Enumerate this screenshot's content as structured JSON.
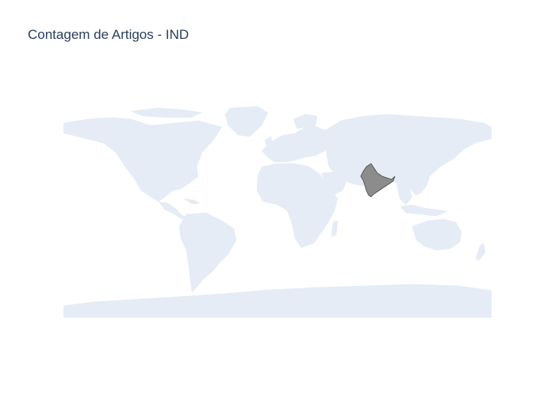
{
  "title": "Contagem de Artigos - IND",
  "map": {
    "projection": "equirectangular",
    "land_color": "#e5ecf6",
    "background_color": "#ffffff",
    "highlighted_country": {
      "iso3": "IND",
      "name": "India",
      "fill_color": "#8c8c8c",
      "outline_color": "#4a4a4a"
    }
  }
}
